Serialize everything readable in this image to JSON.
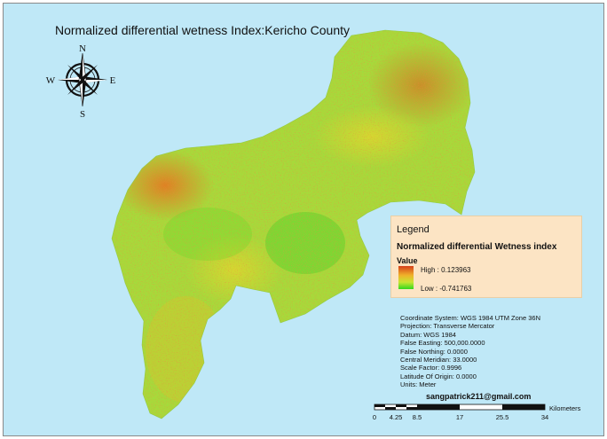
{
  "map": {
    "title": "Normalized differential wetness Index:Kericho County",
    "compass": {
      "north": "N",
      "south": "S",
      "east": "E",
      "west": "W"
    }
  },
  "legend": {
    "title": "Legend",
    "subtitle": "Normalized differential Wetness index",
    "value_heading": "Value",
    "high_label": "High : 0.123963",
    "low_label": "Low : -0.741763",
    "ramp_colors": [
      "#d6401a",
      "#f0b22a",
      "#c8e532",
      "#32d81e"
    ]
  },
  "projection_info": [
    "Coordinate System: WGS 1984 UTM Zone 36N",
    "Projection: Transverse Mercator",
    "Datum: WGS 1984",
    "False Easting: 500,000.0000",
    "False Northing: 0.0000",
    "Central Meridian: 33.0000",
    "Scale Factor: 0.9996",
    "Latitude Of Origin: 0.0000",
    "Units: Meter"
  ],
  "author_email": "sangpatrick211@gmail.com",
  "scale_bar": {
    "ticks": [
      "0",
      "4.25",
      "8.5",
      "17",
      "25.5",
      "34"
    ],
    "unit": "Kilometers"
  },
  "colors": {
    "water_background": "#bfe8f7",
    "region_base": "#9fd83c",
    "high_wetness": "#e2661f",
    "low_wetness": "#32d81e"
  }
}
